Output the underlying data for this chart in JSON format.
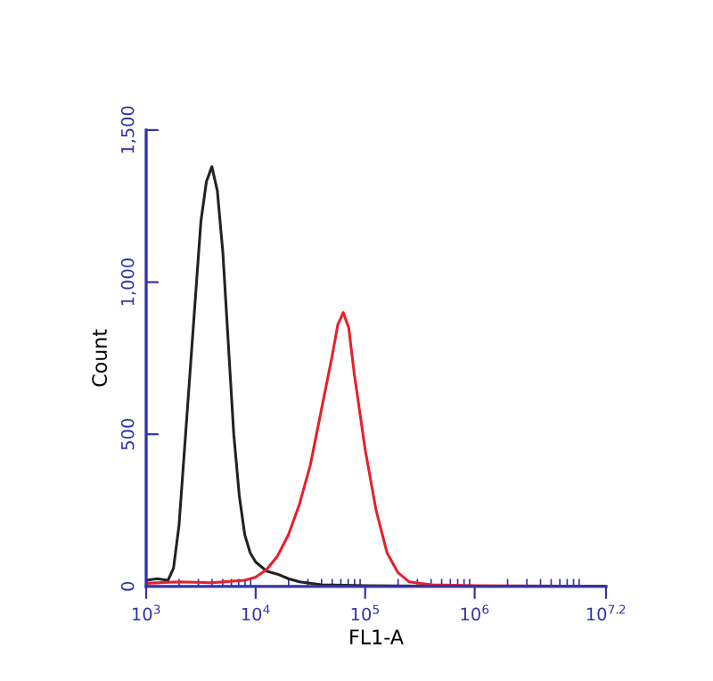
{
  "chart_data": {
    "type": "line",
    "xlabel": "FL1-A",
    "ylabel": "Count",
    "log": "x",
    "xlim": [
      1000,
      15848932
    ],
    "ylim": [
      0,
      1500
    ],
    "xticks": [
      {
        "value": 1000,
        "label": "10$^{3}$"
      },
      {
        "value": 10000,
        "label": "10$^{4}$"
      },
      {
        "value": 100000,
        "label": "10$^{5}$"
      },
      {
        "value": 1000000,
        "label": "10$^{6}$"
      },
      {
        "value": 15848932,
        "label": "10$^{7.2}$"
      }
    ],
    "yticks": [
      0,
      500,
      {
        "value": 1000,
        "label": "1,000"
      },
      {
        "value": 1500,
        "label": "1,500"
      }
    ],
    "grid": false,
    "legend": false,
    "series": [
      {
        "color": "#222222",
        "x": [
          1000,
          1259,
          1585,
          1778,
          1995,
          2239,
          2512,
          2818,
          3162,
          3548,
          3981,
          4467,
          5012,
          5623,
          6310,
          7079,
          7943,
          8913,
          10000,
          12589,
          15849,
          19953,
          25119,
          39811,
          100000,
          1000000,
          15848932
        ],
        "values": [
          20,
          25,
          20,
          60,
          200,
          450,
          700,
          950,
          1200,
          1330,
          1380,
          1300,
          1100,
          800,
          500,
          300,
          170,
          110,
          80,
          50,
          40,
          25,
          15,
          5,
          2,
          0,
          0
        ]
      },
      {
        "color": "#e8202a",
        "x": [
          1000,
          1995,
          3981,
          7943,
          10000,
          12589,
          15849,
          19953,
          25119,
          31623,
          39811,
          50119,
          56234,
          63096,
          70795,
          79433,
          100000,
          125893,
          158489,
          199526,
          251189,
          398107,
          1000000,
          15848932
        ],
        "values": [
          10,
          15,
          12,
          20,
          30,
          55,
          100,
          170,
          270,
          400,
          580,
          760,
          860,
          900,
          850,
          700,
          450,
          250,
          110,
          45,
          15,
          5,
          2,
          0
        ]
      }
    ]
  }
}
